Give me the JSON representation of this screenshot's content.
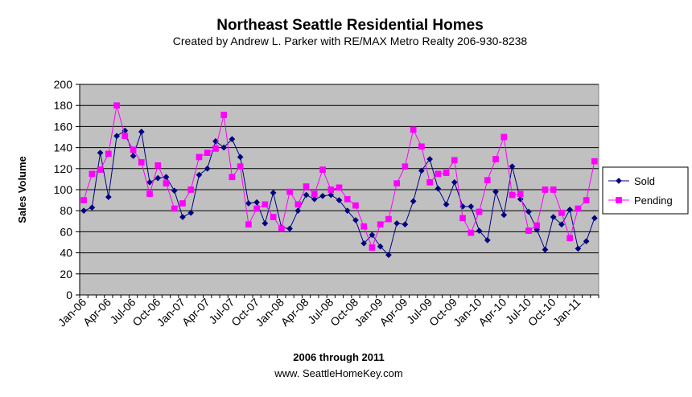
{
  "chart_data": {
    "type": "line",
    "title": "Northeast Seattle  Residential Homes",
    "subtitle": "Created by Andrew L. Parker with RE/MAX Metro Realty 206-930-8238",
    "xlabel": "2006 through 2011",
    "ylabel": "Sales Volume",
    "footer": "www. SeattleHomeKey.com",
    "ylim": [
      0,
      200
    ],
    "yticks": [
      0,
      20,
      40,
      60,
      80,
      100,
      120,
      140,
      160,
      180,
      200
    ],
    "grid": true,
    "legend_position": "right",
    "plot_background": "#c0c0c0",
    "x_tick_labels": [
      "Jan-06",
      "Apr-06",
      "Jul-06",
      "Oct-06",
      "Jan-07",
      "Apr-07",
      "Jul-07",
      "Oct-07",
      "Jan-08",
      "Apr-08",
      "Jul-08",
      "Oct-08",
      "Jan-09",
      "Apr-09",
      "Jul-09",
      "Oct-09",
      "Jan-10",
      "Apr-10",
      "Jul-10",
      "Oct-10",
      "Jan-11"
    ],
    "x_tick_every": 3,
    "series": [
      {
        "name": "Sold",
        "color": "#000080",
        "marker": "diamond",
        "values": [
          80,
          83,
          135,
          93,
          151,
          156,
          132,
          155,
          107,
          111,
          112,
          99,
          74,
          78,
          114,
          120,
          146,
          140,
          148,
          131,
          87,
          88,
          68,
          97,
          64,
          63,
          80,
          95,
          91,
          94,
          95,
          90,
          80,
          71,
          49,
          57,
          46,
          38,
          68,
          67,
          89,
          118,
          129,
          101,
          86,
          107,
          84,
          84,
          61,
          52,
          98,
          76,
          122,
          91,
          79,
          62,
          43,
          74,
          67,
          81,
          44,
          51,
          73
        ]
      },
      {
        "name": "Pending",
        "color": "#ff00ff",
        "marker": "square",
        "values": [
          90,
          115,
          119,
          134,
          180,
          151,
          138,
          126,
          96,
          123,
          106,
          82,
          87,
          100,
          131,
          135,
          139,
          171,
          112,
          122,
          67,
          82,
          86,
          74,
          63,
          98,
          86,
          103,
          96,
          119,
          100,
          102,
          91,
          85,
          65,
          45,
          67,
          72,
          106,
          122,
          157,
          141,
          107,
          115,
          116,
          128,
          73,
          59,
          79,
          109,
          129,
          150,
          95,
          96,
          61,
          66,
          100,
          100,
          78,
          54,
          82,
          90,
          127
        ]
      }
    ]
  }
}
